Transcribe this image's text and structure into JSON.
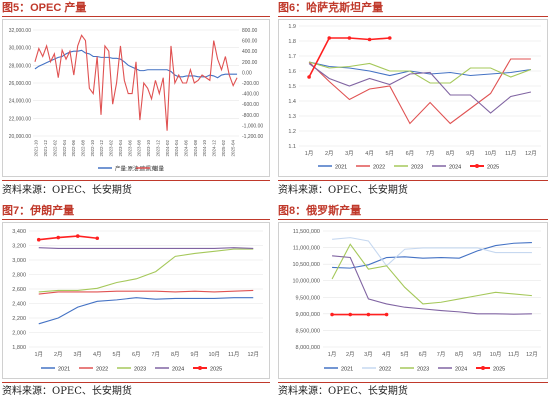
{
  "panels": [
    {
      "title": "图5：OPEC 产量",
      "source": "资料来源：OPEC、长安期货",
      "chart_data": {
        "type": "line",
        "dual_axis": true,
        "ylim_left": [
          20000,
          32000
        ],
        "left_ticks": [
          "32,000.00",
          "30,000.00",
          "28,000.00",
          "26,000.00",
          "24,000.00",
          "22,000.00",
          "20,000.00"
        ],
        "ylim_right": [
          -1200,
          800
        ],
        "right_ticks": [
          "800.00",
          "600.00",
          "400.00",
          "200.00",
          "0.00",
          "-200.00",
          "-400.00",
          "-600.00",
          "-800.00",
          "-1,000.00",
          "-1,200.00"
        ],
        "x_ticks": [
          "2021-10",
          "2021-12",
          "2022-02",
          "2022-04",
          "2022-06",
          "2022-08",
          "2022-10",
          "2022-12",
          "2023-02",
          "2023-04",
          "2023-06",
          "2023-08",
          "2023-10",
          "2023-12",
          "2024-02",
          "2024-04",
          "2024-06",
          "2024-08",
          "2024-10",
          "2024-12",
          "2025-02",
          "2025-04"
        ],
        "series": [
          {
            "name": "产量:原油:欧佩克",
            "axis": "left",
            "color": "#4472c4",
            "values": [
              27600,
              27900,
              28100,
              28300,
              28500,
              28700,
              28900,
              29000,
              29300,
              29500,
              29600,
              29600,
              29700,
              29400,
              29300,
              29000,
              29000,
              28900,
              28900,
              28900,
              28800,
              28800,
              28700,
              28400,
              28000,
              27800,
              27600,
              27400,
              27400,
              27500,
              27500,
              27500,
              27500,
              27500,
              27500,
              27300,
              26900,
              26700,
              26700,
              26800,
              26800,
              26800,
              26700,
              26700,
              26700,
              26900,
              26800,
              26600,
              26900,
              27000,
              27000,
              27000,
              27000
            ]
          },
          {
            "name": "增量",
            "axis": "right",
            "color": "#e05252",
            "values": [
              200,
              450,
              300,
              500,
              200,
              350,
              -100,
              420,
              250,
              400,
              -50,
              500,
              700,
              600,
              -300,
              -400,
              300,
              -800,
              500,
              400,
              -600,
              -200,
              500,
              -150,
              -400,
              -400,
              200,
              -900,
              -200,
              -300,
              -500,
              -150,
              -400,
              -100,
              -1100,
              500,
              -200,
              -50,
              -200,
              -200,
              50,
              -200,
              -150,
              -50,
              -100,
              -150,
              600,
              250,
              50,
              300,
              -50,
              -250,
              -100
            ]
          }
        ]
      }
    },
    {
      "title": "图6：哈萨克斯坦产量",
      "source": "资料来源：OPEC、长安期货",
      "chart_data": {
        "type": "line",
        "ylim": [
          1.1,
          1.9
        ],
        "y_ticks": [
          "1.9",
          "1.8",
          "1.7",
          "1.6",
          "1.5",
          "1.4",
          "1.3",
          "1.2",
          "1.1"
        ],
        "categories": [
          "1月",
          "2月",
          "3月",
          "4月",
          "5月",
          "6月",
          "7月",
          "8月",
          "9月",
          "10月",
          "11月",
          "12月"
        ],
        "series": [
          {
            "name": "2021",
            "color": "#4472c4",
            "values": [
              1.66,
              1.63,
              1.62,
              1.6,
              1.57,
              1.6,
              1.58,
              1.59,
              1.57,
              1.58,
              1.59,
              1.61
            ]
          },
          {
            "name": "2022",
            "color": "#e05252",
            "values": [
              1.66,
              1.53,
              1.41,
              1.48,
              1.5,
              1.25,
              1.39,
              1.25,
              1.35,
              1.45,
              1.68,
              1.68
            ]
          },
          {
            "name": "2023",
            "color": "#a5c85a",
            "values": [
              1.66,
              1.62,
              1.63,
              1.65,
              1.6,
              1.6,
              1.52,
              1.52,
              1.62,
              1.62,
              1.56,
              1.61
            ]
          },
          {
            "name": "2024",
            "color": "#8064a2",
            "values": [
              1.65,
              1.55,
              1.5,
              1.55,
              1.51,
              1.58,
              1.59,
              1.44,
              1.44,
              1.32,
              1.43,
              1.46
            ]
          },
          {
            "name": "2025",
            "color": "#ff2020",
            "values": [
              1.56,
              1.82,
              1.82,
              1.81,
              1.82,
              null,
              null,
              null,
              null,
              null,
              null,
              null
            ]
          }
        ]
      }
    },
    {
      "title": "图7：伊朗产量",
      "source": "资料来源：OPEC、长安期货",
      "chart_data": {
        "type": "line",
        "ylim": [
          1800,
          3400
        ],
        "y_ticks": [
          "3,400",
          "3,200",
          "3,000",
          "2,800",
          "2,600",
          "2,400",
          "2,200",
          "2,000",
          "1,800"
        ],
        "categories": [
          "1月",
          "2月",
          "3月",
          "4月",
          "5月",
          "6月",
          "7月",
          "8月",
          "9月",
          "10月",
          "11月",
          "12月"
        ],
        "series": [
          {
            "name": "2021",
            "color": "#4472c4",
            "values": [
              2120,
              2200,
              2350,
              2430,
              2450,
              2480,
              2460,
              2470,
              2470,
              2470,
              2480,
              2480
            ]
          },
          {
            "name": "2022",
            "color": "#e05252",
            "values": [
              2530,
              2560,
              2560,
              2560,
              2570,
              2570,
              2570,
              2560,
              2570,
              2560,
              2570,
              2580
            ]
          },
          {
            "name": "2023",
            "color": "#a5c85a",
            "values": [
              2560,
              2580,
              2580,
              2610,
              2690,
              2740,
              2840,
              3050,
              3090,
              3120,
              3150,
              3150
            ]
          },
          {
            "name": "2024",
            "color": "#8064a2",
            "values": [
              3170,
              3160,
              3160,
              3160,
              3160,
              3160,
              3160,
              3160,
              3160,
              3160,
              3170,
              3160
            ]
          },
          {
            "name": "2025",
            "color": "#ff2020",
            "values": [
              3280,
              3310,
              3330,
              3300,
              null,
              null,
              null,
              null,
              null,
              null,
              null,
              null
            ]
          }
        ]
      }
    },
    {
      "title": "图8：俄罗斯产量",
      "source": "资料来源：OPEC、长安期货",
      "chart_data": {
        "type": "line",
        "ylim": [
          8000000,
          11500000
        ],
        "y_ticks": [
          "11,500,000",
          "11,000,000",
          "10,500,000",
          "10,000,000",
          "9,500,000",
          "9,000,000",
          "8,500,000",
          "8,000,000"
        ],
        "categories": [
          "1月",
          "2月",
          "3月",
          "4月",
          "5月",
          "6月",
          "7月",
          "8月",
          "9月",
          "10月",
          "11月",
          "12月"
        ],
        "series": [
          {
            "name": "2021",
            "color": "#4472c4",
            "values": [
              10400000,
              10380000,
              10480000,
              10700000,
              10720000,
              10680000,
              10700000,
              10680000,
              10900000,
              11060000,
              11130000,
              11150000
            ]
          },
          {
            "name": "2022",
            "color": "#c6d8f0",
            "values": [
              11250000,
              11300000,
              11200000,
              10450000,
              10950000,
              10990000,
              10990000,
              10990000,
              10990000,
              10850000,
              10850000,
              10850000
            ]
          },
          {
            "name": "2023",
            "color": "#a5c85a",
            "values": [
              10050000,
              11100000,
              10350000,
              10450000,
              9800000,
              9300000,
              9350000,
              9450000,
              9550000,
              9650000,
              9600000,
              9550000
            ]
          },
          {
            "name": "2024",
            "color": "#8064a2",
            "values": [
              10750000,
              10700000,
              9450000,
              9300000,
              9200000,
              9150000,
              9100000,
              9060000,
              9000000,
              9000000,
              8990000,
              9000000
            ]
          },
          {
            "name": "2025",
            "color": "#ff2020",
            "values": [
              8980000,
              8980000,
              8980000,
              8980000,
              null,
              null,
              null,
              null,
              null,
              null,
              null,
              null
            ]
          }
        ]
      }
    }
  ]
}
